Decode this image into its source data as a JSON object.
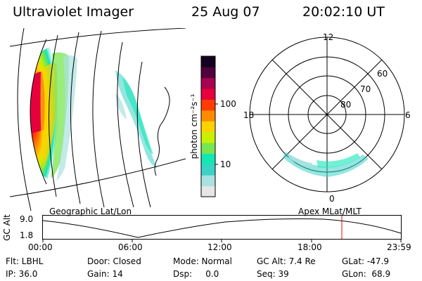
{
  "header": {
    "title": "Ultraviolet Imager",
    "date": "25 Aug 07",
    "time": "20:02:10 UT"
  },
  "colorbar": {
    "unit_label": "photon cm⁻²s⁻¹",
    "tick_100": "100",
    "tick_10": "10",
    "colors": [
      "#e6e6e6",
      "#a9e1e1",
      "#3cd2c8",
      "#14e6b4",
      "#78e650",
      "#c8f000",
      "#ffd200",
      "#ff8c00",
      "#ff3c00",
      "#e6003c",
      "#aa0050",
      "#50003c",
      "#14001e"
    ]
  },
  "polar": {
    "lt_top": "12",
    "lt_left": "18",
    "lt_right": "6",
    "lt_bottom": "0",
    "lat_60": "60",
    "lat_70": "70",
    "lat_80": "80"
  },
  "panels": {
    "geo_label": "Geographic Lat/Lon",
    "apex_label": "Apex MLat/MLT"
  },
  "altitude_plot": {
    "ylabel": "GC Alt",
    "ymax": "9.0",
    "ymin": "1.8",
    "xticks": [
      "00:00",
      "06:00",
      "12:00",
      "18:00",
      "23:59"
    ],
    "current_time_hours": 20.04
  },
  "status": {
    "row1": {
      "flt": "Flt: LBHL",
      "door": "Door: Closed",
      "mode": "Mode: Normal",
      "gcalt": "GC Alt: 7.4 Re",
      "glat": "GLat: -47.9"
    },
    "row2": {
      "ip": "IP: 36.0",
      "gain": "Gain: 14",
      "dsp": "Dsp:     0.0",
      "seq": "Seq: 39",
      "glon": "GLon:  68.9"
    }
  }
}
